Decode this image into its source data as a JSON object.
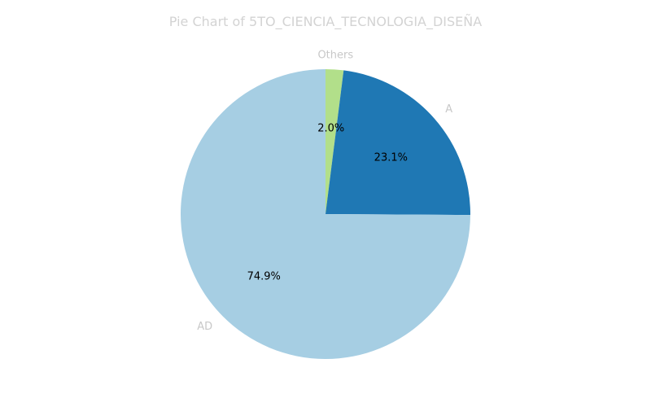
{
  "chart_data": {
    "type": "pie",
    "title": "Pie Chart of 5TO_CIENCIA_TECNOLOGIA_DISEÑA",
    "slices": [
      {
        "label": "Others",
        "value": 2.0,
        "pct_label": "2.0%",
        "color": "#b2df8a"
      },
      {
        "label": "A",
        "value": 23.1,
        "pct_label": "23.1%",
        "color": "#1f78b4"
      },
      {
        "label": "AD",
        "value": 74.9,
        "pct_label": "74.9%",
        "color": "#a6cee3"
      }
    ],
    "start_angle_deg": 90,
    "direction": "clockwise",
    "legend": "none"
  }
}
